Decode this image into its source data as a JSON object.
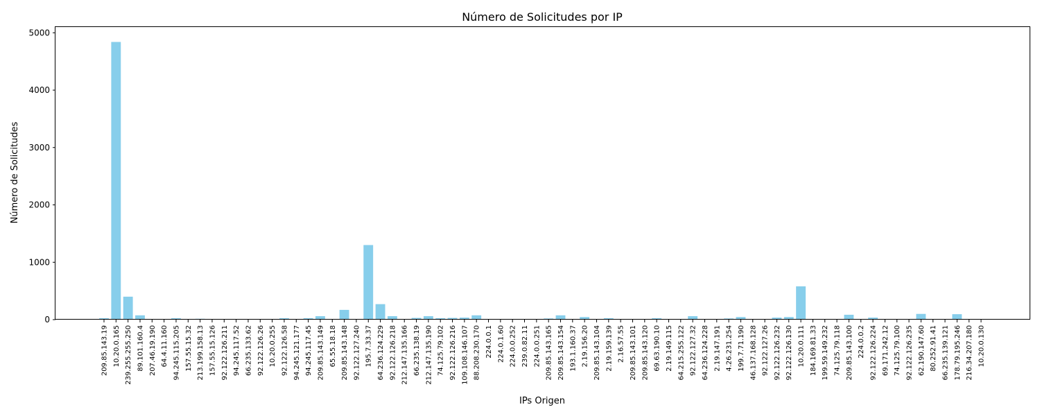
{
  "chart_data": {
    "type": "bar",
    "title": "Número de Solicitudes por IP",
    "xlabel": "IPs Origen",
    "ylabel": "Número de Solicitudes",
    "ylim": [
      0,
      5100
    ],
    "yticks": [
      0,
      1000,
      2000,
      3000,
      4000,
      5000
    ],
    "grid": false,
    "bar_color": "#87CEEB",
    "categories": [
      "209.85.143.19",
      "10.20.0.165",
      "239.255.255.250",
      "89.101.160.4",
      "207.46.19.190",
      "64.4.11.160",
      "94.245.115.205",
      "157.55.15.32",
      "213.199.158.13",
      "157.55.15.126",
      "92.122.126.211",
      "94.245.117.52",
      "66.235.133.62",
      "92.122.126.26",
      "10.20.0.255",
      "92.122.126.58",
      "94.245.121.177",
      "94.245.117.45",
      "209.85.143.149",
      "65.55.18.18",
      "209.85.143.148",
      "92.122.127.240",
      "195.7.33.37",
      "64.236.124.229",
      "92.122.126.218",
      "212.147.135.166",
      "66.235.138.19",
      "212.147.135.190",
      "74.125.79.102",
      "92.122.126.216",
      "109.108.146.107",
      "88.208.230.170",
      "224.0.0.1",
      "224.0.1.60",
      "224.0.0.252",
      "239.0.82.11",
      "224.0.0.251",
      "209.85.143.165",
      "209.85.143.154",
      "193.1.160.37",
      "2.19.156.20",
      "209.85.143.104",
      "2.19.159.139",
      "2.16.57.55",
      "209.85.143.101",
      "209.85.143.120",
      "69.63.190.10",
      "2.19.149.115",
      "64.215.255.122",
      "92.122.127.32",
      "64.236.124.228",
      "2.19.147.191",
      "4.26.231.254",
      "199.7.71.190",
      "46.137.168.128",
      "92.122.127.26",
      "92.122.126.232",
      "92.122.126.130",
      "10.20.0.111",
      "184.169.81.33",
      "199.59.149.232",
      "74.125.79.118",
      "209.85.143.100",
      "224.0.0.2",
      "92.122.126.224",
      "69.171.242.12",
      "74.125.79.100",
      "92.122.126.235",
      "62.190.147.60",
      "80.252.91.41",
      "66.235.139.121",
      "178.79.195.246",
      "216.34.207.180",
      "10.20.0.130"
    ],
    "values": [
      25,
      4840,
      400,
      75,
      5,
      3,
      25,
      8,
      15,
      5,
      5,
      3,
      3,
      3,
      8,
      25,
      5,
      25,
      60,
      10,
      170,
      5,
      1300,
      270,
      60,
      5,
      30,
      60,
      25,
      30,
      35,
      75,
      5,
      3,
      10,
      3,
      5,
      20,
      75,
      5,
      45,
      5,
      25,
      5,
      3,
      3,
      25,
      3,
      5,
      60,
      5,
      10,
      20,
      45,
      10,
      3,
      35,
      45,
      580,
      10,
      10,
      3,
      85,
      3,
      35,
      10,
      10,
      10,
      100,
      10,
      3,
      95,
      5,
      10
    ]
  }
}
